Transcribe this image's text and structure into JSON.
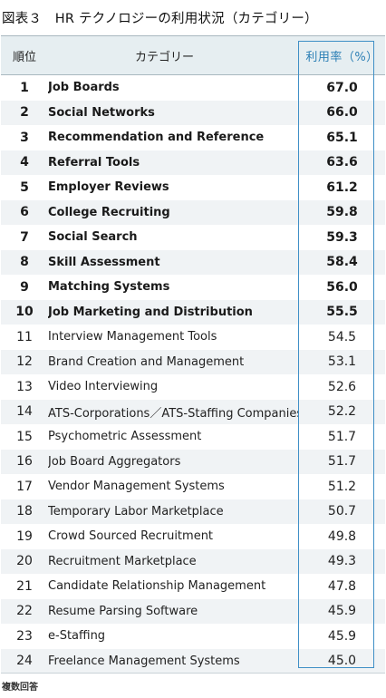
{
  "title": "図表３　HR テクノロジーの利用状況（カテゴリー）",
  "table": {
    "headers": {
      "rank": "順位",
      "category": "カテゴリー",
      "rate": "利用率（%）"
    },
    "rows": [
      {
        "rank": "1",
        "category": "Job Boards",
        "rate": "67.0"
      },
      {
        "rank": "2",
        "category": "Social Networks",
        "rate": "66.0"
      },
      {
        "rank": "3",
        "category": "Recommendation and Reference",
        "rate": "65.1"
      },
      {
        "rank": "4",
        "category": "Referral Tools",
        "rate": "63.6"
      },
      {
        "rank": "5",
        "category": "Employer Reviews",
        "rate": "61.2"
      },
      {
        "rank": "6",
        "category": "College Recruiting",
        "rate": "59.8"
      },
      {
        "rank": "7",
        "category": "Social Search",
        "rate": "59.3"
      },
      {
        "rank": "8",
        "category": "Skill Assessment",
        "rate": "58.4"
      },
      {
        "rank": "9",
        "category": "Matching Systems",
        "rate": "56.0"
      },
      {
        "rank": "10",
        "category": "Job Marketing and Distribution",
        "rate": "55.5"
      },
      {
        "rank": "11",
        "category": "Interview Management Tools",
        "rate": "54.5"
      },
      {
        "rank": "12",
        "category": "Brand Creation and Management",
        "rate": "53.1"
      },
      {
        "rank": "13",
        "category": "Video Interviewing",
        "rate": "52.6"
      },
      {
        "rank": "14",
        "category": "ATS-Corporations／ATS-Staffing Companies",
        "rate": "52.2"
      },
      {
        "rank": "15",
        "category": "Psychometric Assessment",
        "rate": "51.7"
      },
      {
        "rank": "16",
        "category": "Job Board Aggregators",
        "rate": "51.7"
      },
      {
        "rank": "17",
        "category": "Vendor Management Systems",
        "rate": "51.2"
      },
      {
        "rank": "18",
        "category": "Temporary Labor Marketplace",
        "rate": "50.7"
      },
      {
        "rank": "19",
        "category": "Crowd Sourced Recruitment",
        "rate": "49.8"
      },
      {
        "rank": "20",
        "category": "Recruitment Marketplace",
        "rate": "49.3"
      },
      {
        "rank": "21",
        "category": "Candidate Relationship Management",
        "rate": "47.8"
      },
      {
        "rank": "22",
        "category": "Resume Parsing Software",
        "rate": "45.9"
      },
      {
        "rank": "23",
        "category": "e-Staffing",
        "rate": "45.9"
      },
      {
        "rank": "24",
        "category": "Freelance Management Systems",
        "rate": "45.0"
      }
    ],
    "bold_top_count": 10
  },
  "note": "複数回答",
  "colors": {
    "header_bg": "#e6eef1",
    "stripe_bg": "#f0f3f5",
    "accent": "#3f8fc6",
    "accent_text": "#2b7fb5"
  }
}
